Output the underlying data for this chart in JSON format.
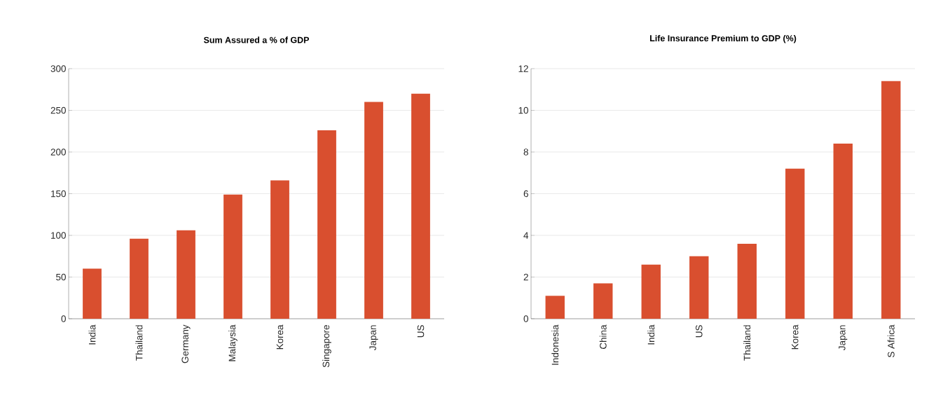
{
  "chart_data": [
    {
      "type": "bar",
      "title": "Sum Assured a % of GDP",
      "categories": [
        "India",
        "Thailand",
        "Germany",
        "Malaysia",
        "Korea",
        "Singapore",
        "Japan",
        "US"
      ],
      "values": [
        60,
        96,
        106,
        149,
        166,
        226,
        260,
        270
      ],
      "color": "#d94f2f",
      "ylim": [
        0,
        300
      ],
      "yticks": [
        0,
        50,
        100,
        150,
        200,
        250,
        300
      ],
      "grid": "y"
    },
    {
      "type": "bar",
      "title": "Life Insurance Premium to GDP  (%)",
      "categories": [
        "Indonesia",
        "China",
        "India",
        "US",
        "Thailand",
        "Korea",
        "Japan",
        "S Africa"
      ],
      "values": [
        1.1,
        1.7,
        2.6,
        3.0,
        3.6,
        7.2,
        8.4,
        11.4
      ],
      "color": "#d94f2f",
      "ylim": [
        0,
        12
      ],
      "yticks": [
        0,
        2,
        4,
        6,
        8,
        10,
        12
      ],
      "grid": "y"
    }
  ]
}
